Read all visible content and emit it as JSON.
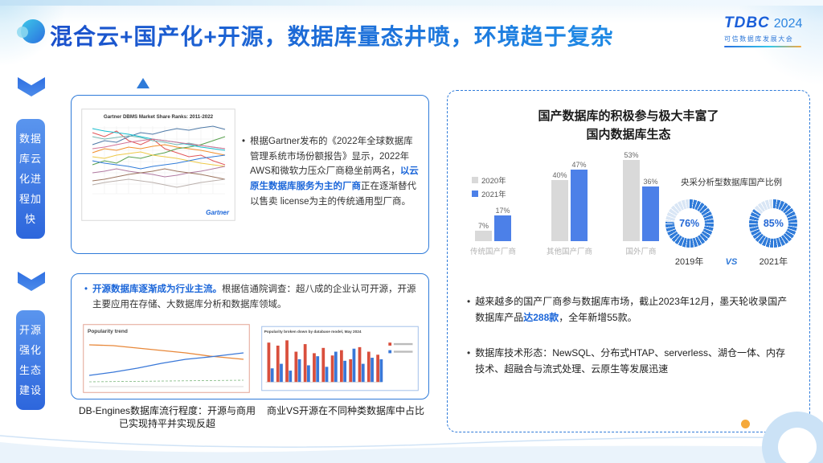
{
  "header": {
    "title": "混合云+国产化+开源，数据库量态井喷，环境趋于复杂",
    "logo_name": "TDBC",
    "logo_year": "2024",
    "logo_subtitle": "可信数据库发展大会"
  },
  "left_tabs": [
    {
      "label": "数据库云化进程加快"
    },
    {
      "label": "开源强化生态建设"
    }
  ],
  "gartner_box": {
    "chart_title": "Gartner DBMS Market Share Ranks: 2011-2022",
    "chart_brand": "Gartner",
    "bullet_pre": "根据Gartner发布的《2022年全球数据库管理系统市场份额报告》显示，2022年AWS和微软力压众厂商稳坐前两名，",
    "bullet_highlight": "以云原生数据库服务为主的厂商",
    "bullet_post": "正在逐渐替代以售卖 license为主的传统通用型厂商。"
  },
  "opensource_box": {
    "bullet_highlight": "开源数据库逐渐成为行业主流。",
    "bullet_rest": "根据信通院调查：超八成的企业认可开源，开源主要应用在存储、大数据库分析和数据库领域。",
    "left_chart_title": "Popularity trend",
    "right_chart_title": "Popularity broken down by database model, May 2024",
    "left_caption": "DB-Engines数据库流行程度：开源与商用已实现持平并实现反超",
    "right_caption": "商业VS开源在不同种类数据库中占比"
  },
  "domestic_box": {
    "title_line1": "国产数据库的积极参与极大丰富了",
    "title_line2": "国内数据库生态",
    "vs_label": "VS",
    "bullet1_pre": "越来越多的国产厂商参与数据库市场，截止2023年12月，墨天轮收录国产数据库产品",
    "bullet1_highlight": "达288款",
    "bullet1_post": "，全年新增55款。",
    "bullet2": "数据库技术形态：NewSQL、分布式HTAP、serverless、湖仓一体、内存技术、超融合与流式处理、云原生等发展迅速"
  },
  "chart_data": [
    {
      "type": "bar",
      "title": "国产数据库的积极参与极大丰富了国内数据库生态",
      "categories": [
        "传统国产厂商",
        "其他国产厂商",
        "国外厂商"
      ],
      "series": [
        {
          "name": "2020年",
          "color": "#D9D9D9",
          "values": [
            7,
            40,
            53
          ]
        },
        {
          "name": "2021年",
          "color": "#4C80E8",
          "values": [
            17,
            47,
            36
          ]
        }
      ],
      "value_suffix": "%",
      "ylim": [
        0,
        60
      ],
      "legend_position": "top-left",
      "grid": false
    },
    {
      "type": "pie",
      "title": "央采分析型数据库国产比例",
      "ring_color": "#2F7BD9",
      "track_color": "#D9E6F5",
      "donuts": [
        {
          "label": "2019年",
          "percent": 76
        },
        {
          "label": "2021年",
          "percent": 85
        }
      ]
    }
  ]
}
